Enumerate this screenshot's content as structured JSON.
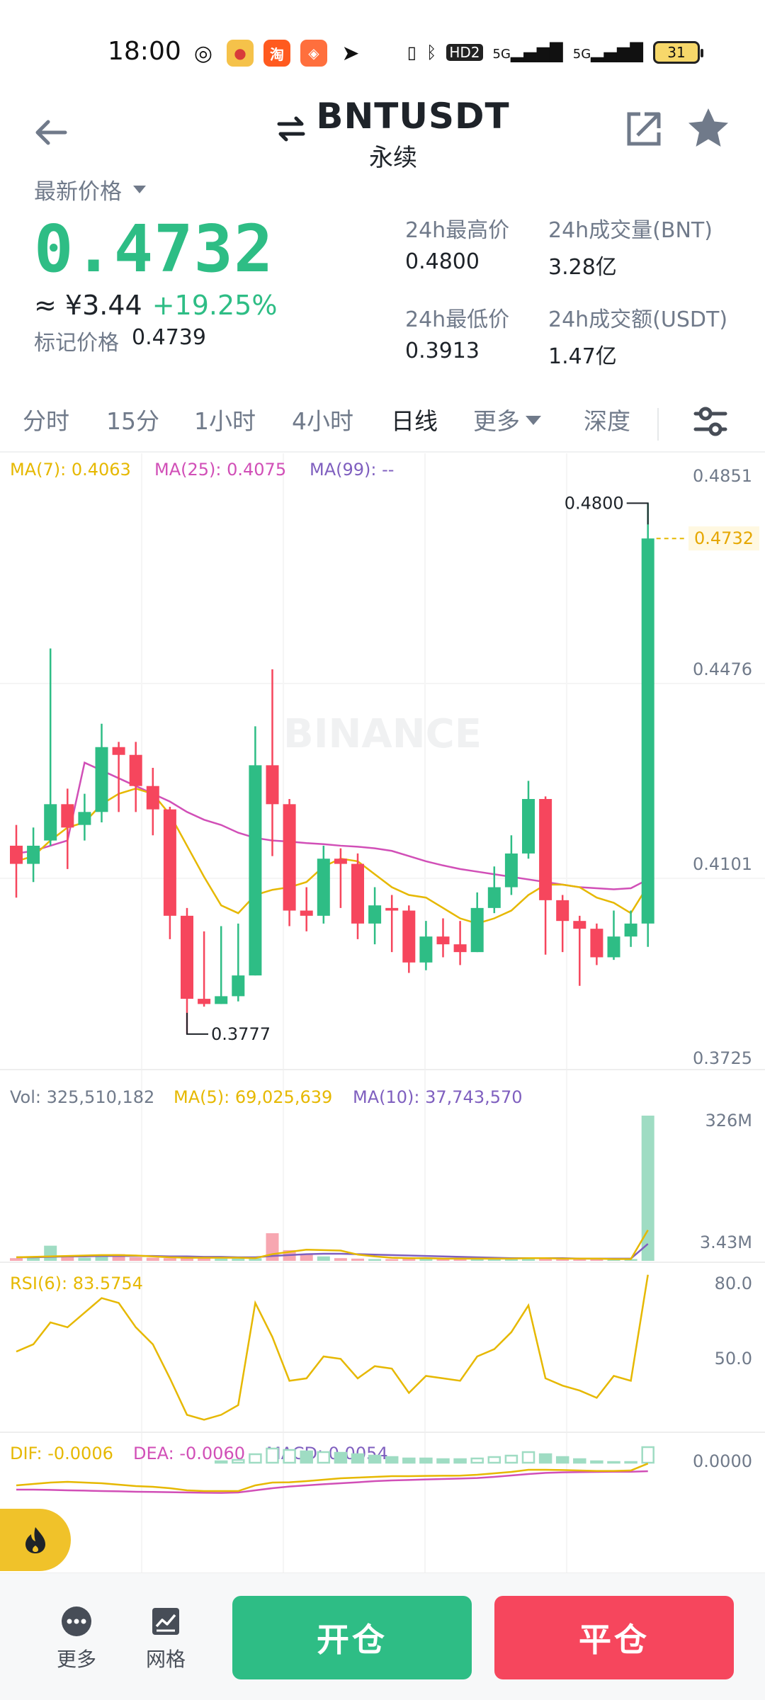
{
  "status_bar": {
    "time": "18:00",
    "battery": "31",
    "network": [
      "HD2",
      "5G",
      "5G"
    ]
  },
  "header": {
    "symbol": "BNTUSDT",
    "contract_type": "永续"
  },
  "price": {
    "label": "最新价格",
    "last": "0.4732",
    "cny": "≈ ¥3.44",
    "change_pct": "+19.25%",
    "mark_label": "标记价格",
    "mark_value": "0.4739"
  },
  "stats": [
    {
      "label": "24h最高价",
      "value": "0.4800"
    },
    {
      "label": "24h成交量(BNT)",
      "value": "3.28亿"
    },
    {
      "label": "24h最低价",
      "value": "0.3913"
    },
    {
      "label": "24h成交额(USDT)",
      "value": "1.47亿"
    }
  ],
  "tabs": [
    "分时",
    "15分",
    "1小时",
    "4小时",
    "日线",
    "更多",
    "深度"
  ],
  "active_tab": "日线",
  "colors": {
    "up": "#2ebd85",
    "down": "#f6465d",
    "ma7": "#e6b800",
    "ma25": "#d14fb7",
    "ma99": "#7f5fbf",
    "text_secondary": "#707a8a"
  },
  "watermark": "BINANCE",
  "chart_data": {
    "type": "candlestick",
    "price_axis": [
      "0.4851",
      "0.4476",
      "0.4101",
      "0.3725"
    ],
    "ylim": [
      0.3725,
      0.4851
    ],
    "current_price_tag": "0.4732",
    "high_label": "0.4800",
    "low_label": "0.3777",
    "ma_legend": {
      "ma7": "MA(7): 0.4063",
      "ma25": "MA(25): 0.4075",
      "ma99": "MA(99): --"
    },
    "candles": [
      {
        "o": 0.414,
        "c": 0.4105,
        "h": 0.418,
        "l": 0.404
      },
      {
        "o": 0.4105,
        "c": 0.414,
        "h": 0.4175,
        "l": 0.407
      },
      {
        "o": 0.415,
        "c": 0.422,
        "h": 0.452,
        "l": 0.414
      },
      {
        "o": 0.422,
        "c": 0.4175,
        "h": 0.425,
        "l": 0.4095
      },
      {
        "o": 0.418,
        "c": 0.4205,
        "h": 0.424,
        "l": 0.415
      },
      {
        "o": 0.4205,
        "c": 0.433,
        "h": 0.4375,
        "l": 0.4185
      },
      {
        "o": 0.433,
        "c": 0.4315,
        "h": 0.434,
        "l": 0.4205
      },
      {
        "o": 0.4315,
        "c": 0.4255,
        "h": 0.434,
        "l": 0.4205
      },
      {
        "o": 0.4255,
        "c": 0.421,
        "h": 0.429,
        "l": 0.416
      },
      {
        "o": 0.421,
        "c": 0.4005,
        "h": 0.4215,
        "l": 0.396
      },
      {
        "o": 0.4005,
        "c": 0.3845,
        "h": 0.402,
        "l": 0.3777
      },
      {
        "o": 0.3845,
        "c": 0.3835,
        "h": 0.3975,
        "l": 0.383
      },
      {
        "o": 0.3835,
        "c": 0.385,
        "h": 0.3985,
        "l": 0.3835
      },
      {
        "o": 0.385,
        "c": 0.389,
        "h": 0.399,
        "l": 0.384
      },
      {
        "o": 0.389,
        "c": 0.4295,
        "h": 0.437,
        "l": 0.389
      },
      {
        "o": 0.4295,
        "c": 0.422,
        "h": 0.448,
        "l": 0.412
      },
      {
        "o": 0.422,
        "c": 0.4015,
        "h": 0.423,
        "l": 0.3985
      },
      {
        "o": 0.4015,
        "c": 0.4005,
        "h": 0.406,
        "l": 0.3975
      },
      {
        "o": 0.4005,
        "c": 0.4115,
        "h": 0.414,
        "l": 0.399
      },
      {
        "o": 0.4115,
        "c": 0.4105,
        "h": 0.4135,
        "l": 0.402
      },
      {
        "o": 0.4105,
        "c": 0.399,
        "h": 0.4125,
        "l": 0.396
      },
      {
        "o": 0.399,
        "c": 0.4025,
        "h": 0.406,
        "l": 0.395
      },
      {
        "o": 0.402,
        "c": 0.4015,
        "h": 0.4045,
        "l": 0.3935
      },
      {
        "o": 0.4015,
        "c": 0.3915,
        "h": 0.4025,
        "l": 0.3895
      },
      {
        "o": 0.3915,
        "c": 0.3965,
        "h": 0.3995,
        "l": 0.39
      },
      {
        "o": 0.3965,
        "c": 0.395,
        "h": 0.4,
        "l": 0.3925
      },
      {
        "o": 0.395,
        "c": 0.3935,
        "h": 0.3995,
        "l": 0.391
      },
      {
        "o": 0.3935,
        "c": 0.402,
        "h": 0.405,
        "l": 0.3935
      },
      {
        "o": 0.402,
        "c": 0.406,
        "h": 0.41,
        "l": 0.401
      },
      {
        "o": 0.406,
        "c": 0.4125,
        "h": 0.416,
        "l": 0.4045
      },
      {
        "o": 0.4125,
        "c": 0.423,
        "h": 0.4265,
        "l": 0.4115
      },
      {
        "o": 0.423,
        "c": 0.4035,
        "h": 0.4235,
        "l": 0.393
      },
      {
        "o": 0.4035,
        "c": 0.3995,
        "h": 0.4045,
        "l": 0.3935
      },
      {
        "o": 0.3995,
        "c": 0.398,
        "h": 0.4005,
        "l": 0.387
      },
      {
        "o": 0.398,
        "c": 0.3925,
        "h": 0.399,
        "l": 0.391
      },
      {
        "o": 0.3925,
        "c": 0.3965,
        "h": 0.4015,
        "l": 0.392
      },
      {
        "o": 0.3965,
        "c": 0.399,
        "h": 0.4015,
        "l": 0.3945
      },
      {
        "o": 0.399,
        "c": 0.4732,
        "h": 0.48,
        "l": 0.3945
      }
    ],
    "ma7": [
      0.411,
      0.412,
      0.415,
      0.4175,
      0.4185,
      0.422,
      0.424,
      0.425,
      0.424,
      0.42,
      0.414,
      0.408,
      0.4025,
      0.401,
      0.4045,
      0.4055,
      0.406,
      0.407,
      0.41,
      0.4115,
      0.411,
      0.4085,
      0.406,
      0.4045,
      0.404,
      0.402,
      0.4,
      0.399,
      0.4,
      0.4015,
      0.4045,
      0.4065,
      0.4065,
      0.406,
      0.404,
      0.403,
      0.401,
      0.4063
    ],
    "ma25": [
      0.4125,
      0.413,
      0.414,
      0.415,
      0.43,
      0.4285,
      0.427,
      0.4255,
      0.424,
      0.4225,
      0.4205,
      0.419,
      0.418,
      0.4165,
      0.4155,
      0.415,
      0.4148,
      0.4145,
      0.4143,
      0.414,
      0.4138,
      0.4135,
      0.413,
      0.412,
      0.411,
      0.4102,
      0.4095,
      0.409,
      0.4085,
      0.408,
      0.4075,
      0.407,
      0.4065,
      0.406,
      0.4058,
      0.4056,
      0.4058,
      0.4075
    ],
    "volume": {
      "legend": "Vol: 325,510,182",
      "ma5_legend": "MA(5): 69,025,639",
      "ma10_legend": "MA(10): 37,743,570",
      "axis": [
        "326M",
        "3.43M"
      ],
      "ymax": 326,
      "values": [
        6,
        7,
        34,
        9,
        7,
        10,
        15,
        8,
        7,
        6,
        8,
        6,
        5,
        5,
        6,
        62,
        24,
        15,
        10,
        6,
        5,
        4,
        4,
        5,
        6,
        5,
        5,
        6,
        5,
        5,
        7,
        5,
        4,
        4,
        4,
        4,
        4,
        326
      ],
      "ma5": [
        8,
        9,
        10,
        11,
        12,
        13,
        13,
        12,
        10,
        8,
        7,
        7,
        7,
        7,
        6,
        15,
        20,
        25,
        24,
        23,
        14,
        10,
        7,
        6,
        6,
        5,
        5,
        5,
        5,
        5,
        6,
        6,
        5,
        5,
        5,
        4,
        4,
        69
      ],
      "ma10": [
        8,
        8,
        9,
        10,
        10,
        11,
        11,
        11,
        11,
        10,
        10,
        9,
        9,
        8,
        8,
        11,
        13,
        15,
        16,
        16,
        15,
        14,
        13,
        12,
        11,
        10,
        9,
        8,
        7,
        6,
        6,
        6,
        6,
        5,
        5,
        5,
        5,
        38
      ]
    },
    "rsi": {
      "legend": "RSI(6): 83.5754",
      "axis": [
        "80.0",
        "50.0"
      ],
      "ylim": [
        20,
        80
      ],
      "values": [
        52,
        55,
        64,
        62,
        68,
        74,
        72,
        62,
        55,
        41,
        26,
        24,
        26,
        30,
        72,
        58,
        40,
        41,
        50,
        49,
        41,
        46,
        45,
        35,
        42,
        41,
        40,
        50,
        53,
        60,
        71,
        41,
        38,
        36,
        33,
        42,
        40,
        83.6
      ]
    },
    "macd": {
      "legend_dif": "DIF: -0.0006",
      "legend_dea": "DEA: -0.0060",
      "legend_macd": "MACD: 0.0054",
      "axis": [
        "0.0000"
      ],
      "hist": [
        0,
        0,
        0,
        0,
        0,
        0,
        0,
        0,
        0,
        0,
        0,
        0,
        2,
        4,
        12,
        20,
        18,
        16,
        15,
        14,
        12,
        10,
        8,
        6,
        6,
        5,
        5,
        6,
        8,
        10,
        15,
        12,
        8,
        5,
        2,
        1,
        1,
        22
      ],
      "hist_hollow": [
        false,
        false,
        false,
        false,
        false,
        false,
        false,
        false,
        false,
        false,
        false,
        false,
        false,
        true,
        true,
        true,
        true,
        false,
        true,
        false,
        false,
        false,
        false,
        false,
        false,
        false,
        false,
        true,
        true,
        true,
        true,
        false,
        false,
        false,
        false,
        false,
        false,
        true
      ],
      "dif": [
        -0.016,
        -0.015,
        -0.014,
        -0.0135,
        -0.014,
        -0.0145,
        -0.0155,
        -0.0165,
        -0.017,
        -0.018,
        -0.0195,
        -0.02,
        -0.02,
        -0.02,
        -0.016,
        -0.014,
        -0.0138,
        -0.013,
        -0.012,
        -0.011,
        -0.0105,
        -0.01,
        -0.0095,
        -0.0095,
        -0.0093,
        -0.0092,
        -0.0091,
        -0.0085,
        -0.0075,
        -0.0065,
        -0.005,
        -0.005,
        -0.0052,
        -0.0055,
        -0.0058,
        -0.0058,
        -0.0055,
        -0.0006
      ],
      "dea": [
        -0.019,
        -0.019,
        -0.0192,
        -0.0195,
        -0.0197,
        -0.02,
        -0.0202,
        -0.0205,
        -0.0206,
        -0.0208,
        -0.021,
        -0.0212,
        -0.0213,
        -0.021,
        -0.0195,
        -0.018,
        -0.0168,
        -0.016,
        -0.0152,
        -0.0145,
        -0.0138,
        -0.013,
        -0.0125,
        -0.0122,
        -0.0118,
        -0.0115,
        -0.0112,
        -0.0108,
        -0.01,
        -0.009,
        -0.008,
        -0.0072,
        -0.0068,
        -0.0066,
        -0.0065,
        -0.0064,
        -0.0064,
        -0.006
      ]
    }
  },
  "bottom_bar": {
    "more_label": "更多",
    "grid_label": "网格",
    "open_label": "开仓",
    "close_label": "平仓"
  }
}
